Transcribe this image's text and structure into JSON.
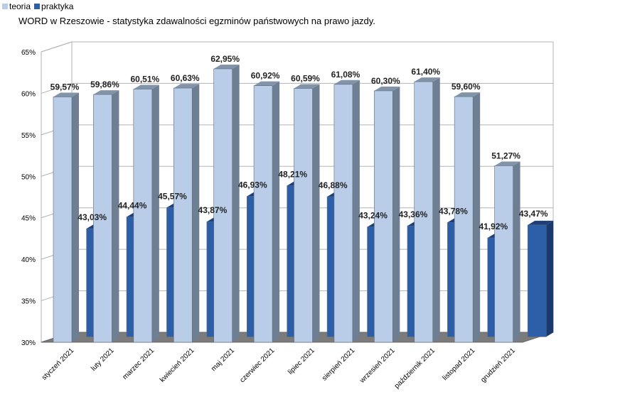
{
  "legend": {
    "items": [
      {
        "label": "teoria",
        "color": "#b9cde8"
      },
      {
        "label": "praktyka",
        "color": "#2d5ea8"
      }
    ]
  },
  "chart_data": {
    "type": "bar",
    "title": "WORD w Rzeszowie - statystyka zdawalności egzminów państwowych na prawo jazdy.",
    "categories": [
      "styczeń 2021",
      "luty 2021",
      "marzec 2021",
      "kwiecień 2021",
      "maj 2021",
      "czerwiec 2021",
      "lipiec 2021",
      "sierpień 2021",
      "wrzesień 2021",
      "październik 2021",
      "listopad 2021",
      "grudzień 2021"
    ],
    "series": [
      {
        "name": "teoria",
        "values": [
          59.57,
          59.86,
          60.51,
          60.63,
          62.95,
          60.92,
          60.59,
          61.08,
          60.3,
          61.4,
          59.6,
          51.27
        ],
        "labels": [
          "59,57%",
          "59,86%",
          "60,51%",
          "60,63%",
          "62,95%",
          "60,92%",
          "60,59%",
          "61,08%",
          "60,30%",
          "61,40%",
          "59,60%",
          "51,27%"
        ],
        "color": "#b9cde8",
        "side_color": "#6f7f93",
        "top_color": "#8393a8"
      },
      {
        "name": "praktyka",
        "values": [
          43.03,
          44.44,
          45.57,
          43.87,
          46.93,
          48.21,
          46.88,
          43.24,
          43.36,
          43.78,
          41.92,
          43.47
        ],
        "labels": [
          "43,03%",
          "44,44%",
          "45,57%",
          "43,87%",
          "46,93%",
          "48,21%",
          "46,88%",
          "43,24%",
          "43,36%",
          "43,78%",
          "41,92%",
          "43,47%"
        ],
        "color": "#2d5ea8",
        "side_color": "#1a3a6e",
        "top_color": "#1e3f78"
      }
    ],
    "y_ticks": [
      "30%",
      "35%",
      "40%",
      "45%",
      "50%",
      "55%",
      "60%",
      "65%"
    ],
    "ylim": [
      30,
      65
    ],
    "grid": true,
    "legend_position": "top-left"
  }
}
